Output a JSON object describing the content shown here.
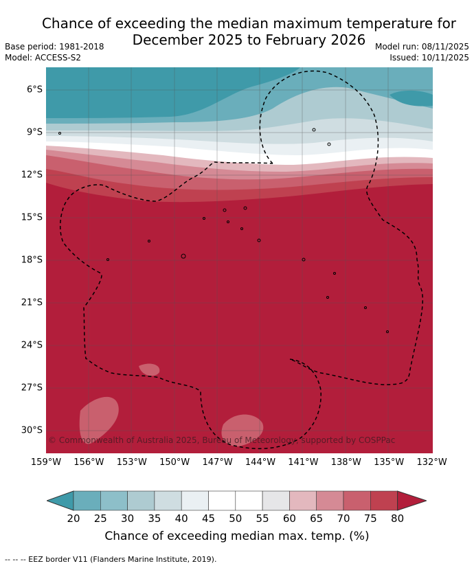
{
  "title": {
    "line1": "Chance of exceeding the median maximum temperature for",
    "line2": "December 2025 to February 2026"
  },
  "meta": {
    "base_period": "Base period: 1981-2018",
    "model": "Model: ACCESS-S2",
    "model_run": "Model run: 08/11/2025",
    "issued": "Issued: 10/11/2025"
  },
  "map": {
    "latitudes": [
      "6°S",
      "9°S",
      "12°S",
      "15°S",
      "18°S",
      "21°S",
      "24°S",
      "27°S",
      "30°S"
    ],
    "longitudes": [
      "159°W",
      "156°W",
      "153°W",
      "150°W",
      "147°W",
      "144°W",
      "141°W",
      "138°W",
      "135°W",
      "132°W"
    ],
    "copyright": "© Commonwealth of Australia 2025, Bureau of Meteorology, supported by COSPPac"
  },
  "colorbar": {
    "ticks": [
      "20",
      "25",
      "30",
      "35",
      "40",
      "45",
      "50",
      "55",
      "60",
      "65",
      "70",
      "75",
      "80"
    ],
    "colors": [
      "#3f9aa9",
      "#6aaebb",
      "#8dbfc9",
      "#aecbd1",
      "#cfdde1",
      "#eaf0f3",
      "#ffffff",
      "#ffffff",
      "#e6e6e8",
      "#e3b8be",
      "#d58a95",
      "#c9606e",
      "#bf4150",
      "#b21e3b"
    ],
    "label": "Chance of exceeding median max. temp. (%)"
  },
  "legend": "--  --  -- EEZ border V11 (Flanders Marine Institute, 2019)."
}
